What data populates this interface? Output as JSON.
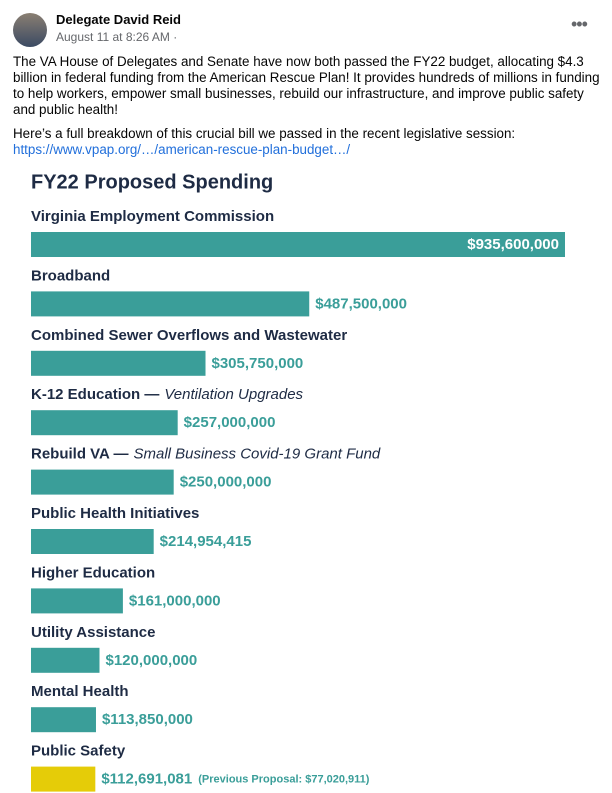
{
  "post": {
    "author": "Delegate David Reid",
    "timestamp": "August 11 at 8:26 AM ·",
    "paragraphs": [
      "The VA House of Delegates and Senate have now both passed the FY22 budget, allocating $4.3 billion in federal funding from the American Rescue Plan! It provides hundreds of millions in funding to help workers, empower small businesses, rebuild our infrastructure, and improve public safety and public health!",
      "Here’s a full breakdown of this crucial bill we passed in the recent legislative session:"
    ],
    "link": "https://www.vpap.org/…/american-rescue-plan-budget…/"
  },
  "chart_data": {
    "type": "bar",
    "orientation": "horizontal",
    "title": "FY22 Proposed Spending",
    "categories": [
      "Virginia Employment Commission",
      "Broadband",
      "Combined Sewer Overflows and Wastewater",
      "K-12 Education —",
      "Rebuild VA —",
      "Public Health Initiatives",
      "Higher Education",
      "Utility Assistance",
      "Mental Health",
      "Public Safety"
    ],
    "category_notes": [
      null,
      null,
      null,
      "Ventilation Upgrades",
      "Small Business Covid-19 Grant Fund",
      null,
      null,
      null,
      null,
      null
    ],
    "values": [
      935600000,
      487500000,
      305750000,
      257000000,
      250000000,
      214954415,
      161000000,
      120000000,
      113850000,
      112691081
    ],
    "value_labels": [
      "$935,600,000",
      "$487,500,000",
      "$305,750,000",
      "$257,000,000",
      "$250,000,000",
      "$214,954,415",
      "$161,000,000",
      "$120,000,000",
      "$113,850,000",
      "$112,691,081"
    ],
    "colors": [
      "#3a9e99",
      "#3a9e99",
      "#3a9e99",
      "#3a9e99",
      "#3a9e99",
      "#3a9e99",
      "#3a9e99",
      "#3a9e99",
      "#3a9e99",
      "#e5cc08"
    ],
    "annotation": "(Previous Proposal: $77,020,911)",
    "xlim": [
      0,
      935600000
    ]
  }
}
